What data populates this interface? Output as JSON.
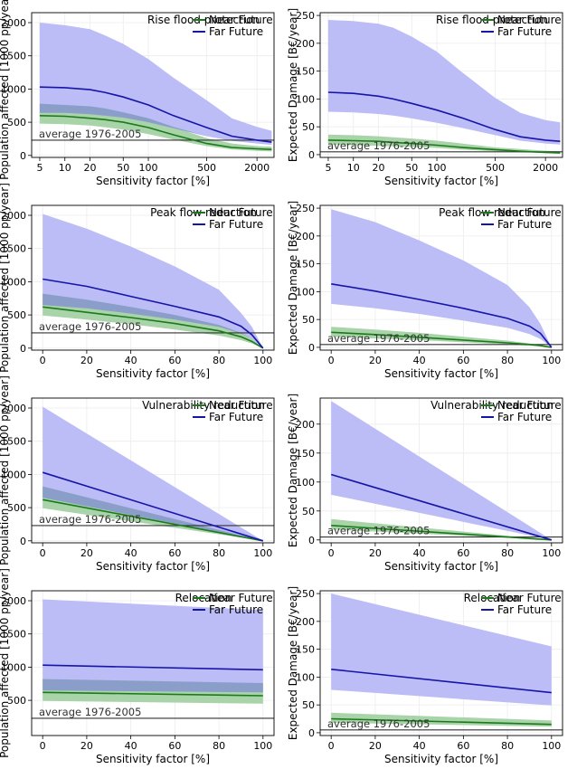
{
  "colors": {
    "near": "#1a7a1a",
    "near_band": "#a9d3a9",
    "far": "#1515a8",
    "far_band": "#bcbcf7",
    "overlap": "#8a9ec9",
    "avg_line": "#333333"
  },
  "chart_data": [
    {
      "type": "area",
      "title": "Rise flood protection",
      "xlabel": "Sensitivity factor [%]",
      "ylabel": "Population affected [1000 pp/year]",
      "xscale": "log",
      "xlim": [
        4,
        3200
      ],
      "ylim": [
        -30,
        2150
      ],
      "xticks": [
        5,
        10,
        20,
        50,
        100,
        500,
        2000
      ],
      "yticks": [
        0,
        500,
        1000,
        1500,
        2000
      ],
      "grid": true,
      "legend_position": "top-right",
      "reference_label": "average 1976-2005",
      "reference_value": 230,
      "x": [
        5,
        10,
        20,
        30,
        50,
        100,
        200,
        500,
        1000,
        2000,
        3000
      ],
      "series": [
        {
          "name": "Near Future",
          "values": [
            600,
            590,
            560,
            540,
            500,
            420,
            310,
            180,
            120,
            100,
            90
          ],
          "lower": [
            480,
            470,
            450,
            425,
            390,
            320,
            240,
            140,
            90,
            70,
            60
          ],
          "upper": [
            780,
            760,
            740,
            710,
            650,
            560,
            430,
            260,
            180,
            140,
            130
          ]
        },
        {
          "name": "Far Future",
          "values": [
            1030,
            1020,
            990,
            950,
            880,
            760,
            600,
            420,
            290,
            230,
            200
          ],
          "lower": [
            640,
            640,
            620,
            600,
            570,
            500,
            410,
            290,
            220,
            180,
            160
          ],
          "upper": [
            2000,
            1960,
            1900,
            1810,
            1680,
            1450,
            1170,
            830,
            560,
            430,
            370
          ]
        }
      ]
    },
    {
      "type": "area",
      "title": "Rise flood protection",
      "xlabel": "Sensitivity factor [%]",
      "ylabel": "Expected Damage [B€/year]",
      "xscale": "log",
      "xlim": [
        4,
        3200
      ],
      "ylim": [
        -5,
        255
      ],
      "xticks": [
        5,
        10,
        20,
        50,
        100,
        500,
        2000
      ],
      "yticks": [
        0,
        50,
        100,
        150,
        200,
        250
      ],
      "grid": true,
      "legend_position": "top-right",
      "reference_label": "average 1976-2005",
      "reference_value": 5,
      "x": [
        5,
        10,
        20,
        30,
        50,
        100,
        200,
        500,
        1000,
        2000,
        3000
      ],
      "series": [
        {
          "name": "Near Future",
          "values": [
            26,
            25,
            24,
            22,
            20,
            17,
            13,
            9,
            6,
            4,
            3
          ],
          "lower": [
            18,
            17,
            16,
            15,
            14,
            12,
            9,
            6,
            4,
            3,
            2
          ],
          "upper": [
            36,
            35,
            33,
            31,
            29,
            25,
            20,
            13,
            10,
            7,
            6
          ]
        },
        {
          "name": "Far Future",
          "values": [
            112,
            110,
            105,
            100,
            92,
            80,
            66,
            45,
            32,
            26,
            24
          ],
          "lower": [
            77,
            76,
            73,
            70,
            65,
            57,
            48,
            35,
            25,
            20,
            18
          ],
          "upper": [
            242,
            240,
            235,
            228,
            212,
            185,
            148,
            102,
            75,
            62,
            58
          ]
        }
      ]
    },
    {
      "type": "area",
      "title": "Peak flow reduction",
      "xlabel": "Sensitivity factor [%]",
      "ylabel": "Population affected [1000 pp/year]",
      "xscale": "linear",
      "xlim": [
        -5,
        105
      ],
      "ylim": [
        -30,
        2150
      ],
      "xticks": [
        0,
        20,
        40,
        60,
        80,
        100
      ],
      "yticks": [
        0,
        500,
        1000,
        1500,
        2000
      ],
      "grid": true,
      "legend_position": "top-right",
      "reference_label": "average 1976-2005",
      "reference_value": 230,
      "x": [
        0,
        20,
        40,
        60,
        80,
        90,
        95,
        100
      ],
      "series": [
        {
          "name": "Near Future",
          "values": [
            620,
            540,
            460,
            370,
            260,
            170,
            100,
            0
          ],
          "lower": [
            490,
            430,
            360,
            280,
            190,
            120,
            70,
            0
          ],
          "upper": [
            820,
            730,
            620,
            500,
            350,
            230,
            140,
            0
          ]
        },
        {
          "name": "Far Future",
          "values": [
            1040,
            930,
            780,
            630,
            470,
            330,
            200,
            0
          ],
          "lower": [
            650,
            600,
            520,
            430,
            320,
            220,
            140,
            0
          ],
          "upper": [
            2020,
            1800,
            1530,
            1230,
            880,
            530,
            320,
            0
          ]
        }
      ]
    },
    {
      "type": "area",
      "title": "Peak flow reduction",
      "xlabel": "Sensitivity factor [%]",
      "ylabel": "Expected Damage [B€/year]",
      "xscale": "linear",
      "xlim": [
        -5,
        105
      ],
      "ylim": [
        -5,
        255
      ],
      "xticks": [
        0,
        20,
        40,
        60,
        80,
        100
      ],
      "yticks": [
        0,
        50,
        100,
        150,
        200,
        250
      ],
      "grid": true,
      "legend_position": "top-right",
      "reference_label": "average 1976-2005",
      "reference_value": 5,
      "x": [
        0,
        20,
        40,
        60,
        80,
        90,
        95,
        100
      ],
      "series": [
        {
          "name": "Near Future",
          "values": [
            27,
            23,
            18,
            13,
            8,
            5,
            3,
            0
          ],
          "lower": [
            19,
            16,
            13,
            9,
            5,
            3,
            2,
            0
          ],
          "upper": [
            37,
            32,
            26,
            19,
            12,
            7,
            4,
            0
          ]
        },
        {
          "name": "Far Future",
          "values": [
            114,
            101,
            86,
            70,
            52,
            38,
            25,
            0
          ],
          "lower": [
            78,
            70,
            60,
            48,
            35,
            24,
            15,
            0
          ],
          "upper": [
            248,
            225,
            192,
            156,
            112,
            72,
            42,
            0
          ]
        }
      ]
    },
    {
      "type": "area",
      "title": "Vulnerability reduction",
      "xlabel": "Sensitivity factor [%]",
      "ylabel": "Population affected [1000 pp/year]",
      "xscale": "linear",
      "xlim": [
        -5,
        105
      ],
      "ylim": [
        -30,
        2150
      ],
      "xticks": [
        0,
        20,
        40,
        60,
        80,
        100
      ],
      "yticks": [
        0,
        500,
        1000,
        1500,
        2000
      ],
      "grid": true,
      "legend_position": "top-right",
      "reference_label": "average 1976-2005",
      "reference_value": 230,
      "x": [
        0,
        100
      ],
      "series": [
        {
          "name": "Near Future",
          "values": [
            620,
            0
          ],
          "lower": [
            490,
            0
          ],
          "upper": [
            820,
            0
          ]
        },
        {
          "name": "Far Future",
          "values": [
            1030,
            0
          ],
          "lower": [
            650,
            0
          ],
          "upper": [
            2020,
            0
          ]
        }
      ]
    },
    {
      "type": "area",
      "title": "Vulnerability reduction",
      "xlabel": "Sensitivity factor [%]",
      "ylabel": "Expected Damage [B€/year]",
      "xscale": "linear",
      "xlim": [
        -5,
        105
      ],
      "ylim": [
        -5,
        245
      ],
      "xticks": [
        0,
        20,
        40,
        60,
        80,
        100
      ],
      "yticks": [
        0,
        50,
        100,
        150,
        200
      ],
      "grid": true,
      "legend_position": "top-right",
      "reference_label": "average 1976-2005",
      "reference_value": 5,
      "x": [
        0,
        100
      ],
      "series": [
        {
          "name": "Near Future",
          "values": [
            25,
            0
          ],
          "lower": [
            18,
            0
          ],
          "upper": [
            36,
            0
          ]
        },
        {
          "name": "Far Future",
          "values": [
            113,
            0
          ],
          "lower": [
            78,
            0
          ],
          "upper": [
            240,
            0
          ]
        }
      ]
    },
    {
      "type": "area",
      "title": "Relocation",
      "xlabel": "Sensitivity factor [%]",
      "ylabel": "Population affected [1000 pp/year]",
      "xscale": "linear",
      "xlim": [
        -5,
        105
      ],
      "ylim": [
        -30,
        2150
      ],
      "xticks": [
        0,
        20,
        40,
        60,
        80,
        100
      ],
      "yticks": [
        500,
        1000,
        1500,
        2000
      ],
      "grid": true,
      "legend_position": "top-right",
      "reference_label": "average 1976-2005",
      "reference_value": 230,
      "x": [
        0,
        100
      ],
      "series": [
        {
          "name": "Near Future",
          "values": [
            620,
            570
          ],
          "lower": [
            490,
            450
          ],
          "upper": [
            820,
            760
          ]
        },
        {
          "name": "Far Future",
          "values": [
            1030,
            960
          ],
          "lower": [
            650,
            620
          ],
          "upper": [
            2020,
            1860
          ]
        }
      ]
    },
    {
      "type": "area",
      "title": "Relocation",
      "xlabel": "Sensitivity factor [%]",
      "ylabel": "Expected Damage [B€/year]",
      "xscale": "linear",
      "xlim": [
        -5,
        105
      ],
      "ylim": [
        -5,
        255
      ],
      "xticks": [
        0,
        20,
        40,
        60,
        80,
        100
      ],
      "yticks": [
        0,
        50,
        100,
        150,
        200,
        250
      ],
      "grid": true,
      "legend_position": "top-right",
      "reference_label": "average 1976-2005",
      "reference_value": 5,
      "x": [
        0,
        100
      ],
      "series": [
        {
          "name": "Near Future",
          "values": [
            25,
            15
          ],
          "lower": [
            18,
            11
          ],
          "upper": [
            36,
            22
          ]
        },
        {
          "name": "Far Future",
          "values": [
            114,
            72
          ],
          "lower": [
            77,
            49
          ],
          "upper": [
            250,
            155
          ]
        }
      ]
    }
  ]
}
